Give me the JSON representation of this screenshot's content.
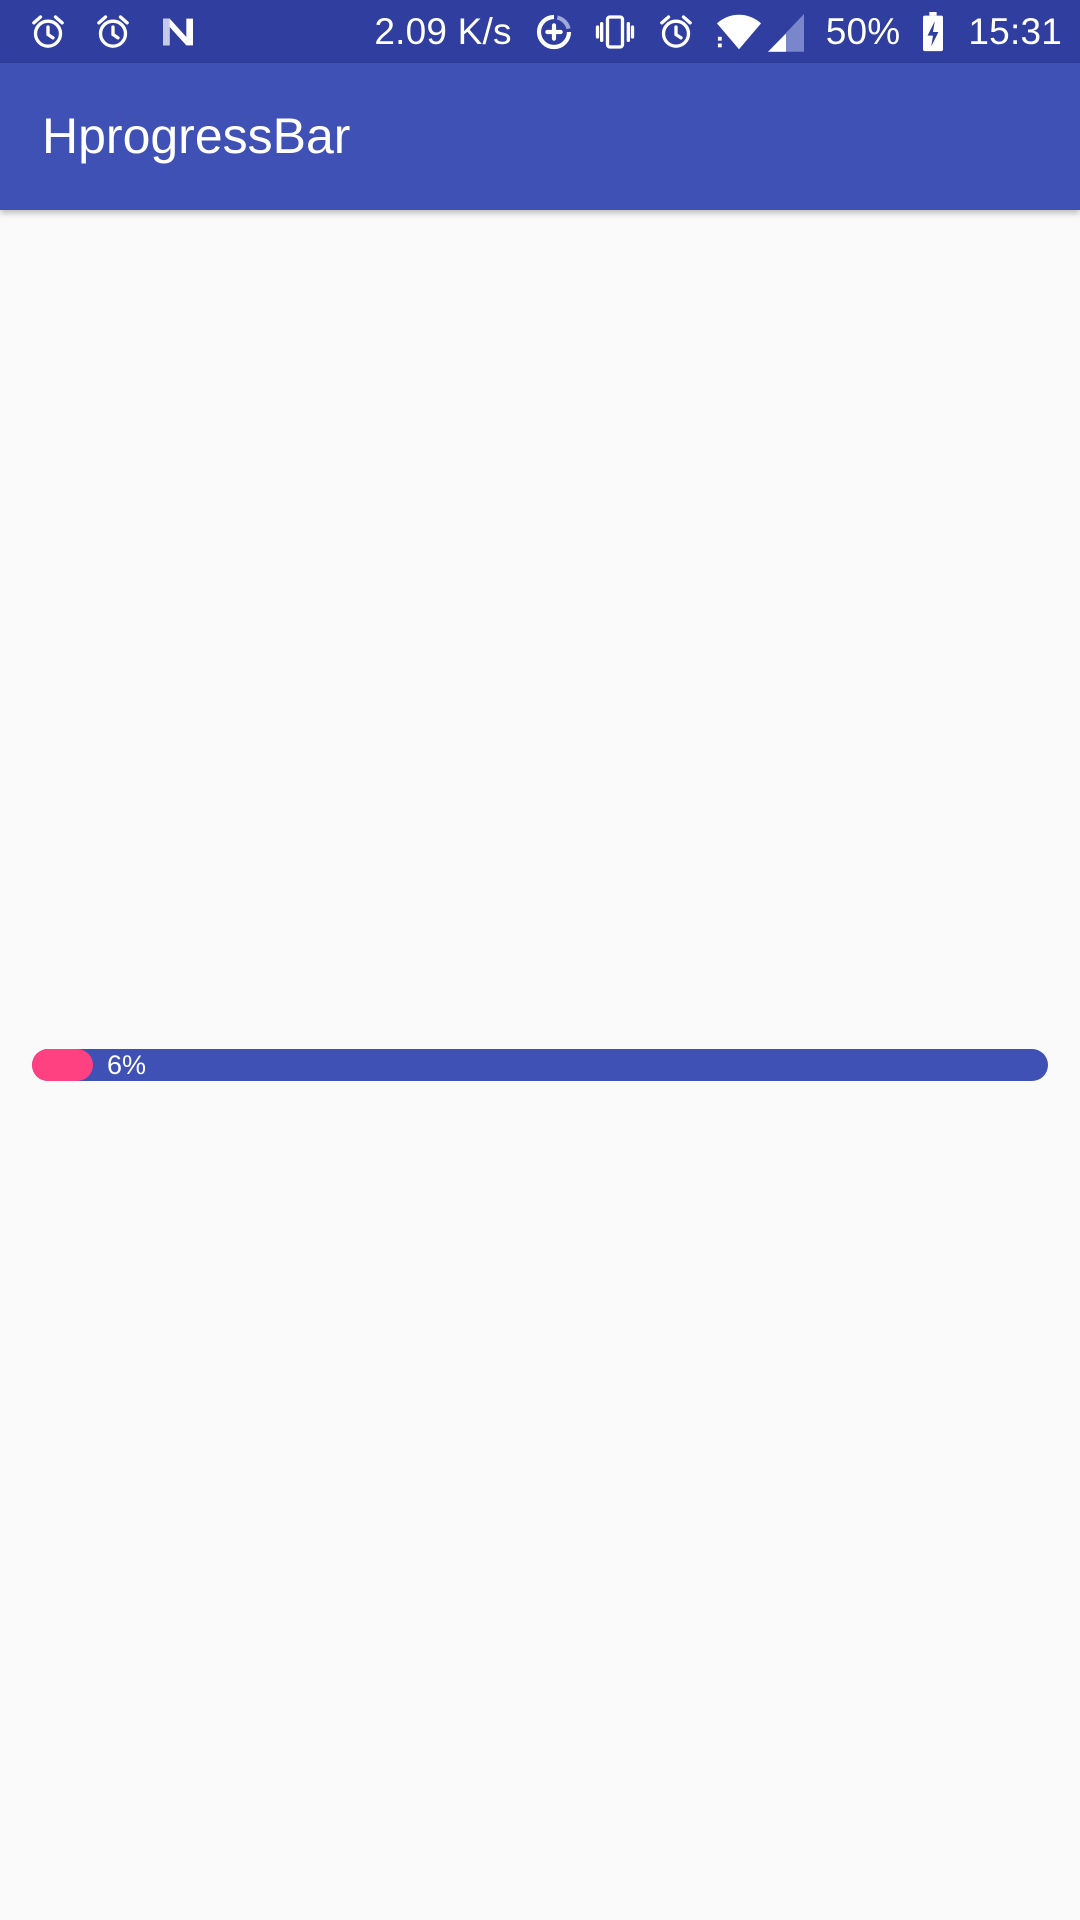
{
  "status_bar": {
    "left_icons": [
      "alarm-icon",
      "alarm-icon",
      "n-logo-icon"
    ],
    "network_speed": "2.09 K/s",
    "right_icons": [
      "data-saver-icon",
      "vibrate-icon",
      "alarm-icon",
      "wifi-icon",
      "cell-signal-icon"
    ],
    "battery_percent": "50%",
    "battery_icon": "battery-charging-icon",
    "time": "15:31",
    "background_color": "#303f9f"
  },
  "app_bar": {
    "title": "HprogressBar",
    "background_color": "#3f51b5"
  },
  "progress_bar": {
    "value": 0.06,
    "label": "6%",
    "fill_color": "#ff4081",
    "track_color": "#3f51b5"
  }
}
